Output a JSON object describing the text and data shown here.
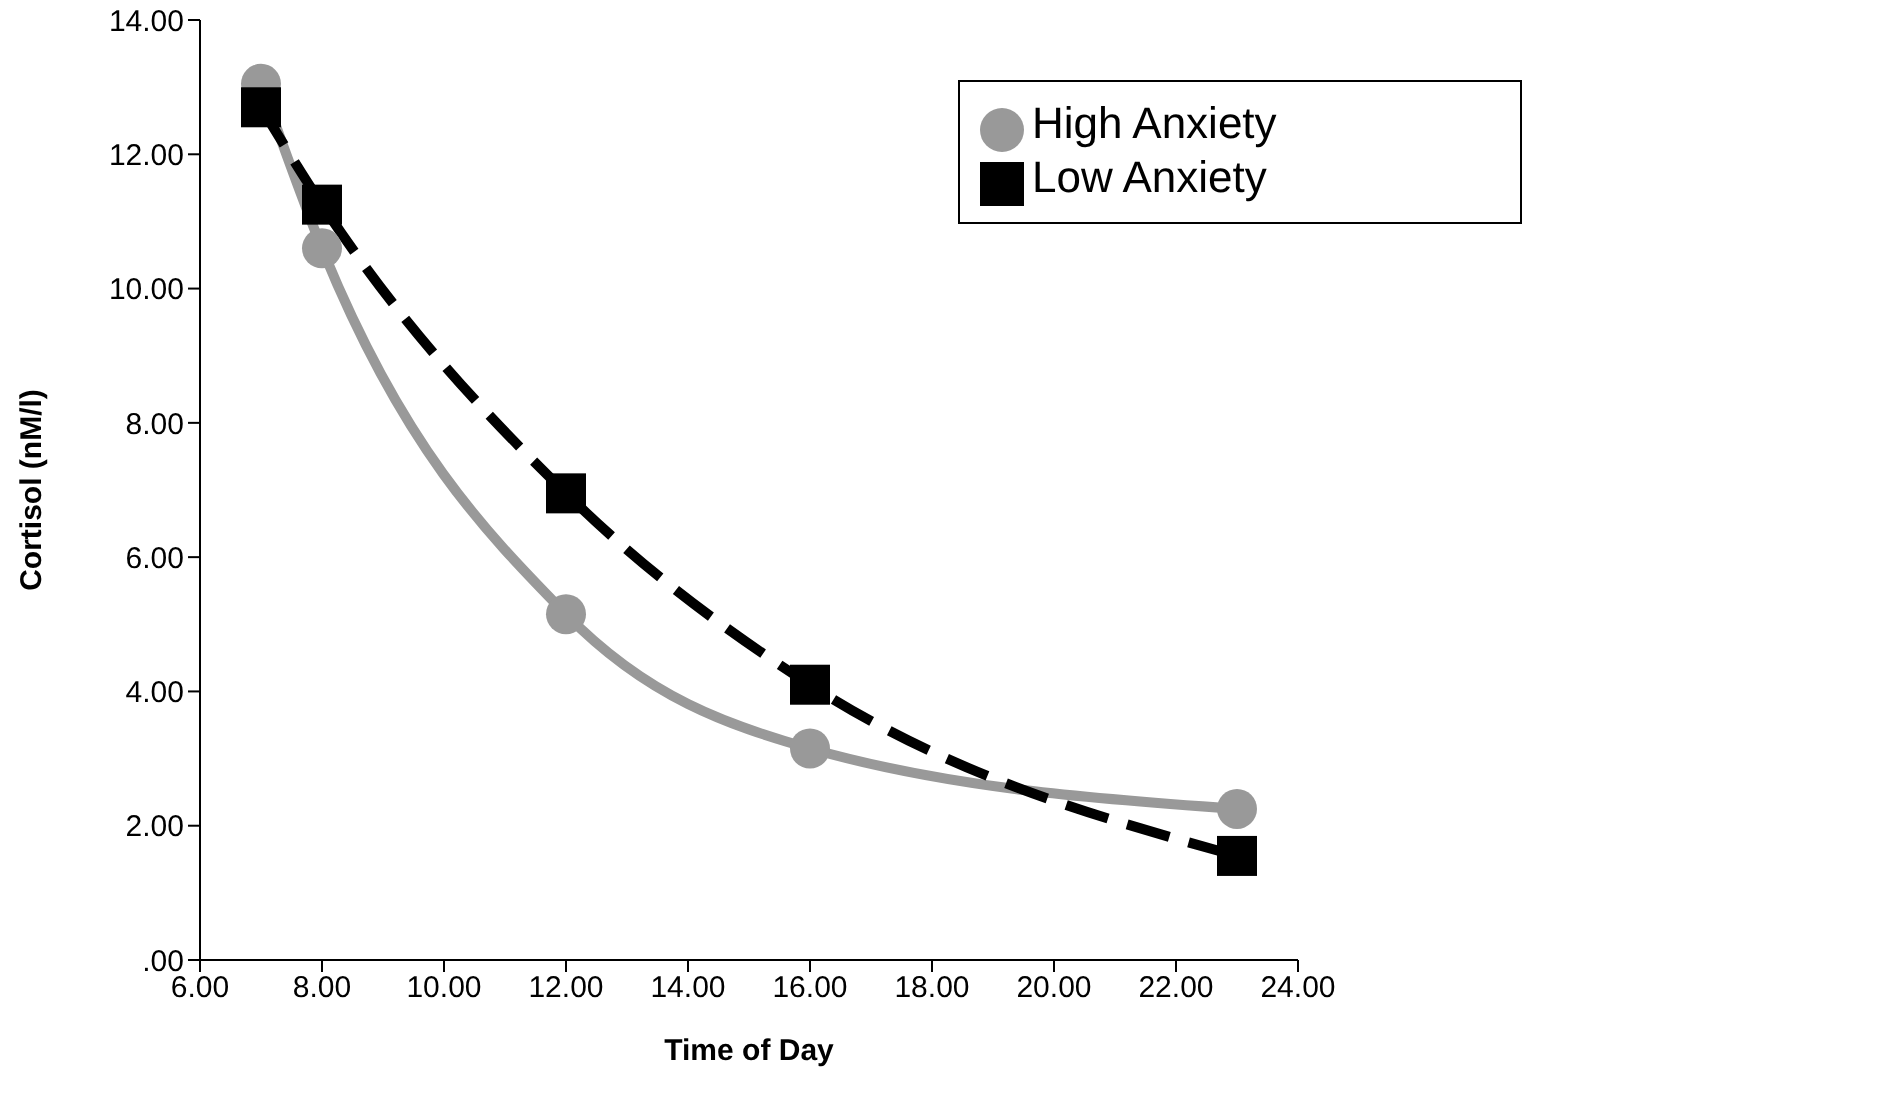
{
  "chart_data": {
    "type": "line",
    "xlabel": "Time of Day",
    "ylabel": "Cortisol (nM/l)",
    "x": [
      7,
      8,
      12,
      16,
      23
    ],
    "series": [
      {
        "name": "High Anxiety",
        "color": "#999999",
        "values": [
          13.05,
          10.6,
          5.15,
          3.15,
          2.25
        ],
        "marker": "circle",
        "line_style": "solid"
      },
      {
        "name": "Low Anxiety",
        "color": "#000000",
        "values": [
          12.7,
          11.25,
          6.95,
          4.1,
          1.55
        ],
        "marker": "square",
        "line_style": "dashed"
      }
    ],
    "xlim": [
      6,
      24
    ],
    "xticks": [
      {
        "value": 6,
        "label": "6.00"
      },
      {
        "value": 8,
        "label": "8.00"
      },
      {
        "value": 10,
        "label": "10.00"
      },
      {
        "value": 12,
        "label": "12.00"
      },
      {
        "value": 14,
        "label": "14.00"
      },
      {
        "value": 16,
        "label": "16.00"
      },
      {
        "value": 18,
        "label": "18.00"
      },
      {
        "value": 20,
        "label": "20.00"
      },
      {
        "value": 22,
        "label": "22.00"
      },
      {
        "value": 24,
        "label": "24.00"
      }
    ],
    "ylim": [
      0,
      14
    ],
    "yticks": [
      {
        "value": 0,
        "label": ".00"
      },
      {
        "value": 2,
        "label": "2.00"
      },
      {
        "value": 4,
        "label": "4.00"
      },
      {
        "value": 6,
        "label": "6.00"
      },
      {
        "value": 8,
        "label": "8.00"
      },
      {
        "value": 10,
        "label": "10.00"
      },
      {
        "value": 12,
        "label": "12.00"
      },
      {
        "value": 14,
        "label": "14.00"
      }
    ],
    "grid": false,
    "legend": "top right"
  }
}
